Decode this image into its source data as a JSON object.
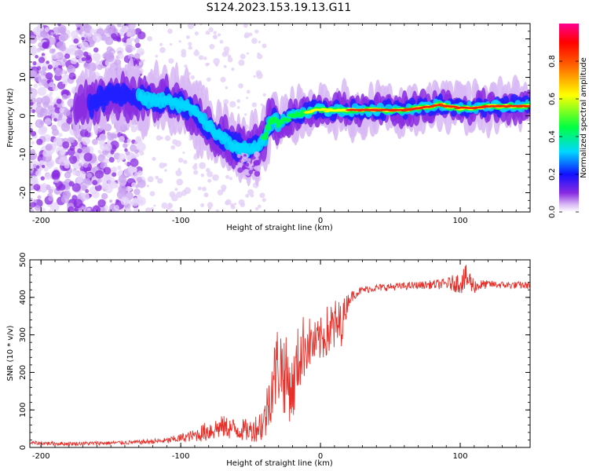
{
  "title": "S124.2023.153.19.13.G11",
  "chart_data": [
    {
      "type": "heatmap",
      "xlabel": "Height of straight line (km)",
      "ylabel": "Frequency (Hz)",
      "xlim": [
        -208,
        150
      ],
      "ylim": [
        -25,
        24
      ],
      "xticks": [
        -200,
        -100,
        0,
        100
      ],
      "yticks": [
        -20,
        -10,
        0,
        10,
        20
      ],
      "xtick_labels": [
        "-200",
        "-100",
        "0",
        "100"
      ],
      "ytick_labels": [
        "-20",
        "-10",
        "0",
        "10",
        "20"
      ],
      "ridge": {
        "x": [
          -165,
          -150,
          -130,
          -120,
          -110,
          -100,
          -90,
          -80,
          -70,
          -60,
          -50,
          -45,
          -40,
          -37,
          -33,
          -30,
          -20,
          -10,
          0,
          10,
          20,
          40,
          60,
          70,
          80,
          85,
          90,
          100,
          110,
          120,
          150
        ],
        "y": [
          3,
          5,
          5,
          4,
          4,
          3,
          1,
          -3,
          -6,
          -8,
          -9,
          -8,
          -6,
          -2,
          -1,
          -2,
          0,
          1,
          1.5,
          1.5,
          1.5,
          1.5,
          1.5,
          2,
          2.5,
          3,
          2.5,
          2,
          2,
          2.5,
          2.5
        ]
      },
      "colorbar": {
        "label": "Normalized spectral amplitude",
        "range": [
          0,
          1
        ],
        "ticks": [
          0.0,
          0.2,
          0.4,
          0.6,
          0.8
        ],
        "tick_labels": [
          "0.0",
          "0.2",
          "0.4",
          "0.6",
          "0.8"
        ]
      }
    },
    {
      "type": "line",
      "xlabel": "Height of straight line (km)",
      "ylabel": "SNR (10 * v/v)",
      "xlim": [
        -208,
        150
      ],
      "ylim": [
        0,
        500
      ],
      "xticks": [
        -200,
        -100,
        0,
        100
      ],
      "yticks": [
        0,
        100,
        200,
        300,
        400,
        500
      ],
      "xtick_labels": [
        "-200",
        "-100",
        "0",
        "100"
      ],
      "ytick_labels": [
        "0",
        "100",
        "200",
        "300",
        "400",
        "500"
      ],
      "series": [
        {
          "name": "SNR",
          "color": "#e8302a",
          "x": [
            -208,
            -180,
            -150,
            -130,
            -110,
            -100,
            -90,
            -80,
            -70,
            -60,
            -50,
            -45,
            -40,
            -35,
            -30,
            -25,
            -20,
            -15,
            -10,
            -5,
            0,
            5,
            10,
            15,
            20,
            25,
            30,
            40,
            50,
            60,
            70,
            80,
            90,
            100,
            105,
            110,
            120,
            130,
            150
          ],
          "y": [
            12,
            10,
            12,
            14,
            18,
            25,
            32,
            45,
            55,
            48,
            45,
            55,
            70,
            160,
            230,
            190,
            150,
            250,
            280,
            275,
            285,
            310,
            320,
            330,
            395,
            410,
            420,
            425,
            428,
            430,
            432,
            434,
            436,
            440,
            450,
            430,
            435,
            433,
            432
          ],
          "noise": [
            5,
            5,
            5,
            6,
            8,
            12,
            16,
            30,
            30,
            30,
            30,
            40,
            60,
            90,
            120,
            110,
            90,
            100,
            80,
            60,
            60,
            70,
            80,
            60,
            20,
            12,
            10,
            10,
            10,
            10,
            10,
            12,
            15,
            30,
            40,
            20,
            10,
            10,
            10
          ]
        }
      ]
    }
  ]
}
